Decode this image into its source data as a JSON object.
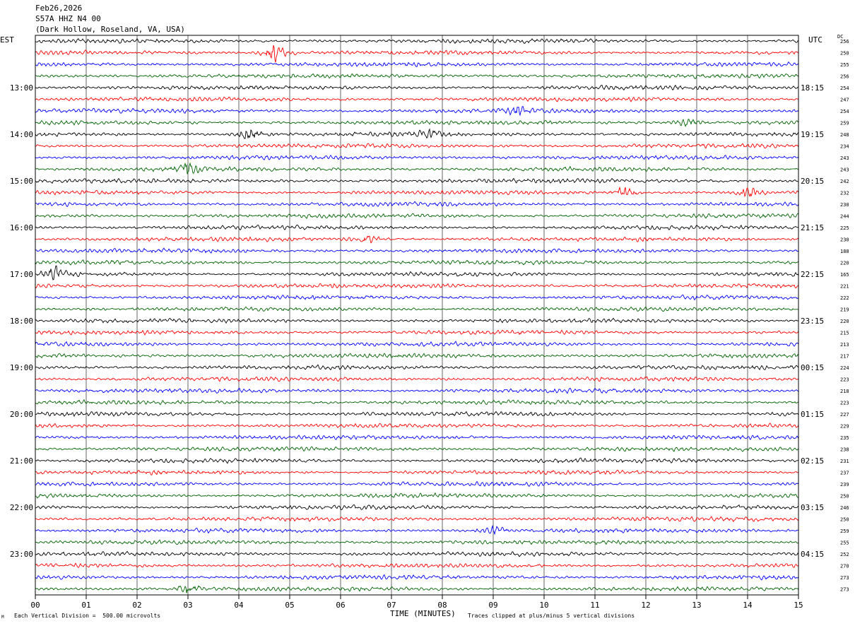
{
  "header": {
    "date": "Feb26,2026",
    "station": "S57A HHZ N4 00",
    "location": "(Dark Hollow, Roseland, VA, USA)"
  },
  "left_timezone": "EST",
  "right_timezone": "UTC",
  "dc_label": "DC",
  "footer": {
    "scale_note": "Each Vertical Division =  500.00 microvolts",
    "clip_note": "Traces clipped at plus/minus 5 vertical divisions",
    "corner_mark": "M"
  },
  "colors": {
    "trace_cycle": [
      "#000000",
      "#ff0000",
      "#0000ff",
      "#006400"
    ],
    "grid": "#000000"
  },
  "chart_data": {
    "type": "helicorder",
    "xlabel": "TIME (MINUTES)",
    "x_ticks": [
      "00",
      "01",
      "02",
      "03",
      "04",
      "05",
      "06",
      "07",
      "08",
      "09",
      "10",
      "11",
      "12",
      "13",
      "14",
      "15"
    ],
    "xlim": [
      0,
      15
    ],
    "row_count": 48,
    "minutes_per_row": 15,
    "left_hour_labels": [
      {
        "row": 4,
        "text": "13:00"
      },
      {
        "row": 8,
        "text": "14:00"
      },
      {
        "row": 12,
        "text": "15:00"
      },
      {
        "row": 16,
        "text": "16:00"
      },
      {
        "row": 20,
        "text": "17:00"
      },
      {
        "row": 24,
        "text": "18:00"
      },
      {
        "row": 28,
        "text": "19:00"
      },
      {
        "row": 32,
        "text": "20:00"
      },
      {
        "row": 36,
        "text": "21:00"
      },
      {
        "row": 40,
        "text": "22:00"
      },
      {
        "row": 44,
        "text": "23:00"
      }
    ],
    "right_hour_labels": [
      {
        "row": 4,
        "text": "18:15"
      },
      {
        "row": 8,
        "text": "19:15"
      },
      {
        "row": 12,
        "text": "20:15"
      },
      {
        "row": 16,
        "text": "21:15"
      },
      {
        "row": 20,
        "text": "22:15"
      },
      {
        "row": 24,
        "text": "23:15"
      },
      {
        "row": 28,
        "text": "00:15"
      },
      {
        "row": 32,
        "text": "01:15"
      },
      {
        "row": 36,
        "text": "02:15"
      },
      {
        "row": 40,
        "text": "03:15"
      },
      {
        "row": 44,
        "text": "04:15"
      }
    ],
    "dc_values": [
      "256",
      "250",
      "255",
      "256",
      "254",
      "247",
      "254",
      "259",
      "248",
      "234",
      "243",
      "243",
      "242",
      "232",
      "230",
      "244",
      "225",
      "230",
      "188",
      "220",
      "165",
      "221",
      "222",
      "219",
      "220",
      "215",
      "213",
      "217",
      "224",
      "223",
      "218",
      "223",
      "227",
      "229",
      "235",
      "238",
      "231",
      "237",
      "239",
      "250",
      "246",
      "250",
      "259",
      "255",
      "252",
      "270",
      "273",
      "273"
    ],
    "events": [
      {
        "row": 1,
        "minute": 4.7,
        "amp": 18
      },
      {
        "row": 8,
        "minute": 4.2,
        "amp": 14
      },
      {
        "row": 8,
        "minute": 7.7,
        "amp": 9
      },
      {
        "row": 11,
        "minute": 3.0,
        "amp": 12
      },
      {
        "row": 13,
        "minute": 11.6,
        "amp": 11
      },
      {
        "row": 13,
        "minute": 14.0,
        "amp": 10
      },
      {
        "row": 17,
        "minute": 6.5,
        "amp": 8
      },
      {
        "row": 20,
        "minute": 0.4,
        "amp": 12
      },
      {
        "row": 6,
        "minute": 9.5,
        "amp": 9
      },
      {
        "row": 7,
        "minute": 12.8,
        "amp": 8
      },
      {
        "row": 42,
        "minute": 9.0,
        "amp": 8
      },
      {
        "row": 47,
        "minute": 3.0,
        "amp": 9
      }
    ]
  }
}
